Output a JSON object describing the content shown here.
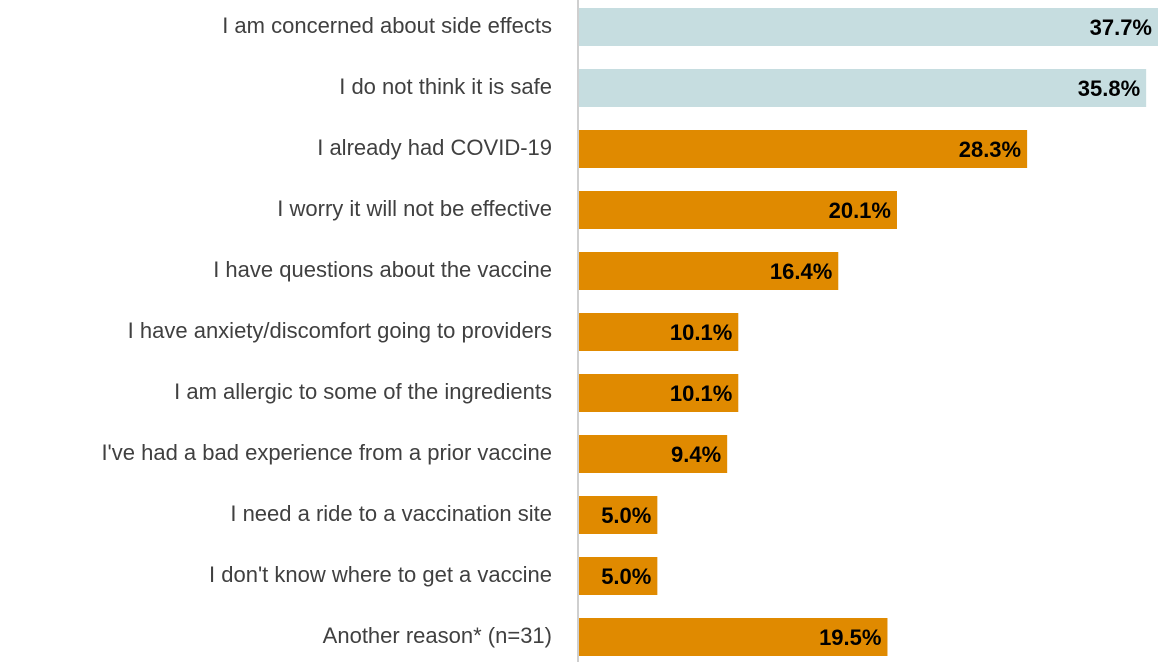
{
  "chart_data": {
    "type": "bar",
    "orientation": "horizontal",
    "categories": [
      "I am concerned about side effects",
      "I do not think it is safe",
      "I already had COVID-19",
      "I worry it will not be effective",
      "I have questions about the vaccine",
      "I have anxiety/discomfort going to providers",
      "I am allergic to some of the ingredients",
      "I've had a bad experience from a prior vaccine",
      "I need a ride to a vaccination site",
      "I don't know where to get a vaccine",
      "Another reason* (n=31)"
    ],
    "values": [
      37.7,
      35.8,
      28.3,
      20.1,
      16.4,
      10.1,
      10.1,
      9.4,
      5.0,
      5.0,
      19.5
    ],
    "value_labels": [
      "37.7%",
      "35.8%",
      "28.3%",
      "20.1%",
      "16.4%",
      "10.1%",
      "10.1%",
      "9.4%",
      "5.0%",
      "5.0%",
      "19.5%"
    ],
    "colors": [
      "#c6dde0",
      "#c6dde0",
      "#e08a00",
      "#e08a00",
      "#e08a00",
      "#e08a00",
      "#e08a00",
      "#e08a00",
      "#e08a00",
      "#e08a00",
      "#e08a00"
    ]
  }
}
